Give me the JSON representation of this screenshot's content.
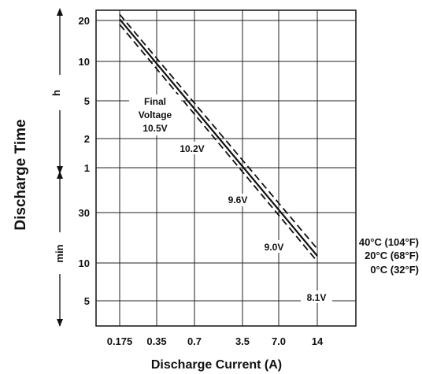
{
  "chart_data": {
    "type": "line",
    "xlabel": "Discharge Current (A)",
    "ylabel": "Discharge Time",
    "x_scale": "log",
    "y_scale": "log",
    "x_ticks": [
      "0.175",
      "0.35",
      "0.7",
      "3.5",
      "7.0",
      "14"
    ],
    "y_ticks_hours": [
      "20",
      "10",
      "5",
      "2",
      "1"
    ],
    "y_ticks_minutes": [
      "30",
      "10",
      "5"
    ],
    "y_unit_hours": "h",
    "y_unit_minutes": "min",
    "series": [
      {
        "name": "40°C (104°F)",
        "style": "dashed",
        "points": [
          [
            0.175,
            22.5
          ],
          [
            14,
            0.23
          ]
        ]
      },
      {
        "name": "20°C (68°F)",
        "style": "solid",
        "points": [
          [
            0.175,
            20.5
          ],
          [
            14,
            0.2
          ]
        ]
      },
      {
        "name": "0°C (32°F)",
        "style": "dashed",
        "points": [
          [
            0.175,
            18.5
          ],
          [
            14,
            0.18
          ]
        ]
      }
    ],
    "annotations": [
      {
        "text": "Final",
        "lines": [
          "Final",
          "Voltage",
          "10.5V"
        ]
      },
      {
        "text": "10.2V"
      },
      {
        "text": "9.6V"
      },
      {
        "text": "9.0V"
      },
      {
        "text": "8.1V"
      }
    ],
    "grid": true
  }
}
